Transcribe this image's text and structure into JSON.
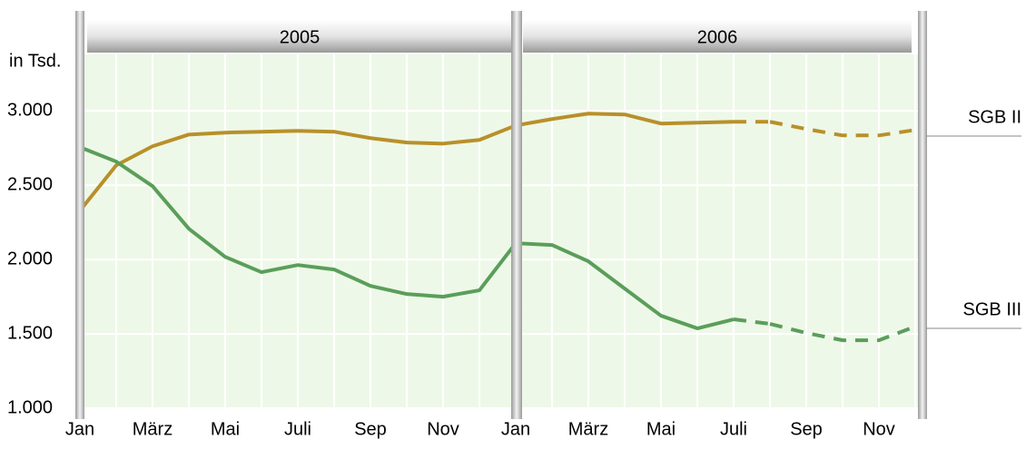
{
  "chart_data": {
    "type": "line",
    "y_label": "in Tsd.",
    "year_labels": [
      "2005",
      "2006"
    ],
    "categories": [
      "Jan",
      null,
      "März",
      null,
      "Mai",
      null,
      "Juli",
      null,
      "Sep",
      null,
      "Nov",
      null,
      "Jan",
      null,
      "März",
      null,
      "Mai",
      null,
      "Juli",
      null,
      "Sep",
      null,
      "Nov",
      null
    ],
    "series": [
      {
        "name": "SGB II",
        "color": "#b8902a",
        "values": [
          2329,
          2634,
          2762,
          2841,
          2854,
          2860,
          2866,
          2860,
          2817,
          2787,
          2780,
          2805,
          2902,
          2945,
          2982,
          2976,
          2915,
          2921,
          2927,
          2927,
          2878,
          2835,
          2835,
          2872
        ]
      },
      {
        "name": "SGB III",
        "color": "#5a9e5a",
        "values": [
          2756,
          2659,
          2494,
          2207,
          2018,
          1915,
          1963,
          1933,
          1823,
          1768,
          1750,
          1793,
          2110,
          2098,
          1988,
          1805,
          1622,
          1537,
          1598,
          1567,
          1506,
          1457,
          1457,
          1549
        ]
      }
    ],
    "dashed_from": 18,
    "ylim": [
      1000,
      3380
    ],
    "yticks": [
      {
        "value": 1000,
        "label": "1.000"
      },
      {
        "value": 1500,
        "label": "1.500"
      },
      {
        "value": 2000,
        "label": "2.000"
      },
      {
        "value": 2500,
        "label": "2.500"
      },
      {
        "value": 3000,
        "label": "3.000"
      }
    ],
    "grid": true
  }
}
